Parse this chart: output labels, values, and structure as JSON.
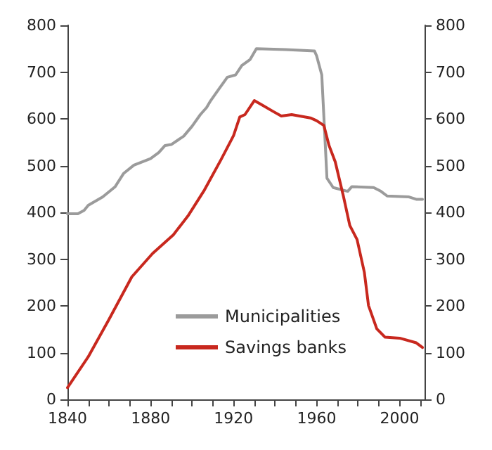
{
  "chart_data": {
    "type": "line",
    "series": [
      {
        "name": "Municipalities",
        "color": "#9b9b9b",
        "x": [
          1840,
          1845,
          1848,
          1850,
          1857,
          1863,
          1867,
          1872,
          1880,
          1884,
          1887,
          1890,
          1896,
          1900,
          1904,
          1907,
          1909,
          1913,
          1917,
          1921,
          1924,
          1928,
          1931,
          1945,
          1959,
          1960,
          1962.5,
          1965,
          1968,
          1975,
          1977,
          1987.5,
          1991,
          1994,
          2004.5,
          2008,
          2011
        ],
        "values": [
          397,
          397,
          404,
          415,
          433,
          455,
          483,
          501,
          515,
          528,
          543,
          545,
          563,
          584,
          609,
          624,
          639,
          664,
          689,
          694,
          714,
          727,
          750,
          748,
          745,
          735,
          694,
          473,
          453,
          445,
          455,
          453,
          445,
          435,
          433,
          428,
          428
        ]
      },
      {
        "name": "Savings banks",
        "color": "#c8281e",
        "x": [
          1840,
          1850,
          1860,
          1871,
          1881,
          1891,
          1898,
          1906,
          1914,
          1920,
          1923,
          1925.5,
          1930,
          1934,
          1939,
          1943,
          1948,
          1957,
          1960,
          1963.5,
          1966,
          1969,
          1973,
          1976,
          1979.5,
          1983,
          1985,
          1989,
          1993,
          2000,
          2008,
          2011
        ],
        "values": [
          25,
          91,
          171,
          262,
          312,
          352,
          392,
          448,
          513,
          564,
          604,
          609,
          639,
          629,
          616,
          606,
          609,
          602,
          596,
          586,
          543,
          508,
          433,
          372,
          342,
          272,
          201,
          151,
          133,
          131,
          121,
          111
        ]
      }
    ],
    "xlim": [
      1840,
      2012
    ],
    "xticks": [
      1840,
      {
        "value": 1850,
        "label": null
      },
      {
        "value": 1860,
        "label": null
      },
      {
        "value": 1870,
        "label": null
      },
      1880,
      {
        "value": 1890,
        "label": null
      },
      {
        "value": 1900,
        "label": null
      },
      {
        "value": 1910,
        "label": null
      },
      1920,
      {
        "value": 1930,
        "label": null
      },
      {
        "value": 1940,
        "label": null
      },
      {
        "value": 1950,
        "label": null
      },
      1960,
      {
        "value": 1970,
        "label": null
      },
      {
        "value": 1980,
        "label": null
      },
      {
        "value": 1990,
        "label": null
      },
      2000,
      {
        "value": 2010,
        "label": null
      }
    ],
    "ylim": [
      0,
      800
    ],
    "yticks": [
      0,
      100,
      200,
      300,
      400,
      500,
      600,
      700,
      800
    ],
    "y2lim": [
      0,
      800
    ],
    "y2ticks": [
      0,
      100,
      200,
      300,
      400,
      500,
      600,
      700,
      800
    ],
    "grid": false,
    "legend": "bottom",
    "marker": "none",
    "line_style": "solid"
  }
}
